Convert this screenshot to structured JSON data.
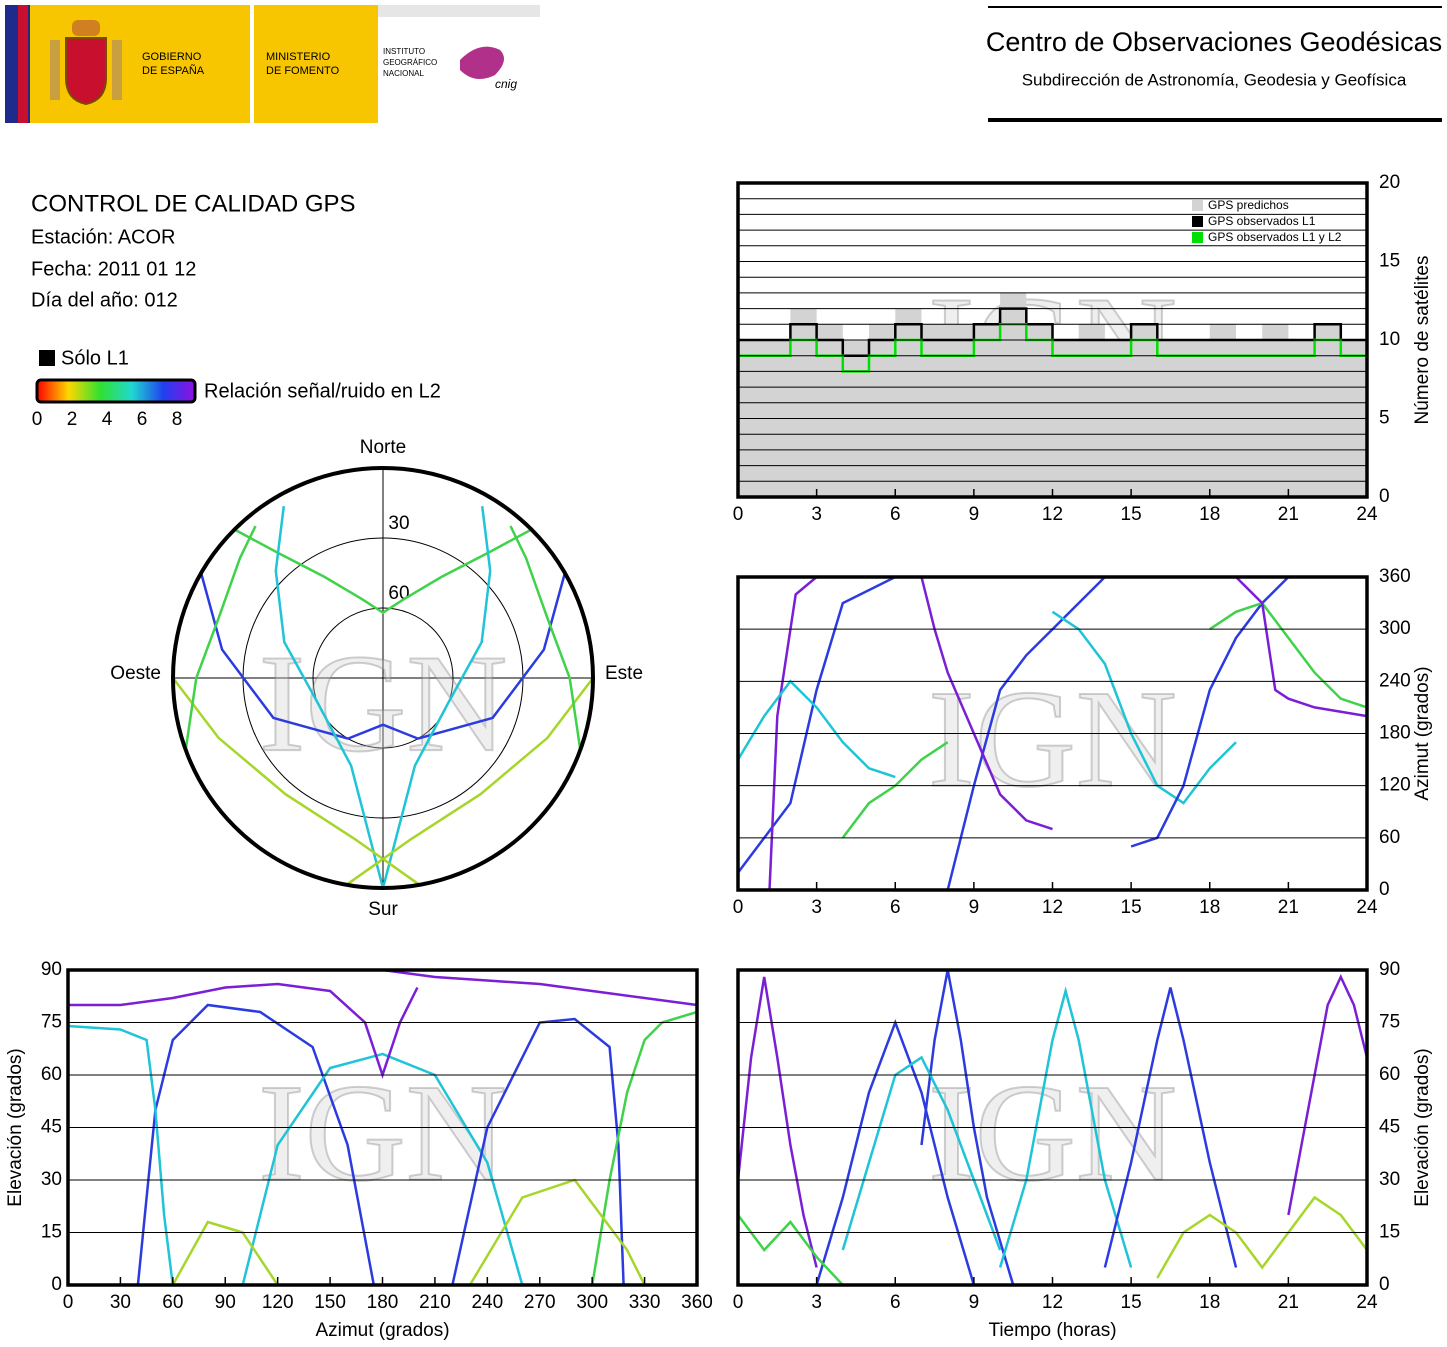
{
  "header": {
    "gov_line1": "GOBIERNO",
    "gov_line2": "DE ESPAÑA",
    "min_line1": "MINISTERIO",
    "min_line2": "DE FOMENTO",
    "ign_line1": "INSTITUTO",
    "ign_line2": "GEOGRÁFICO",
    "ign_line3": "NACIONAL",
    "cnig": "cnig",
    "center_title": "Centro de Observaciones Geodésicas",
    "center_subtitle": "Subdirección de Astronomía, Geodesia y Geofísica"
  },
  "report": {
    "title": "CONTROL DE CALIDAD GPS",
    "station": "Estación: ACOR",
    "date": "Fecha: 2011 01 12",
    "doy": "Día del año: 012",
    "l1_only_label": "Sólo L1",
    "l1_only_color": "#000000",
    "colorbar_label": "Relación señal/ruido en L2",
    "colorbar_ticks": [
      0,
      2,
      4,
      6,
      8
    ],
    "colorbar_colors": [
      "#ff0000",
      "#ffd800",
      "#30e030",
      "#20d8d0",
      "#2040f0",
      "#9010e0"
    ]
  },
  "watermark": "IGN",
  "chart_data": [
    {
      "type": "step",
      "y_axis_side": "right",
      "ylabel": "Número de satélites",
      "xlim": [
        0,
        24
      ],
      "xticks": [
        0,
        3,
        6,
        9,
        12,
        15,
        18,
        21,
        24
      ],
      "ylim": [
        0,
        20
      ],
      "yticks": [
        0,
        5,
        10,
        15,
        20
      ],
      "yminorticks": [
        1,
        2,
        3,
        4,
        6,
        7,
        8,
        9,
        11,
        12,
        13,
        14,
        16,
        17,
        18,
        19
      ],
      "grid": true,
      "x": [
        0,
        1,
        2,
        3,
        4,
        5,
        6,
        7,
        8,
        9,
        10,
        11,
        12,
        13,
        14,
        15,
        16,
        17,
        18,
        19,
        20,
        21,
        22,
        23,
        24
      ],
      "series": [
        {
          "name": "GPS predichos",
          "color": "#d3d3d3",
          "values": [
            10,
            10,
            12,
            11,
            10,
            11,
            12,
            11,
            11,
            11,
            13,
            11,
            10,
            11,
            10,
            11,
            10,
            10,
            11,
            10,
            11,
            10,
            11,
            10,
            10
          ]
        },
        {
          "name": "GPS observados L1",
          "color": "#000000",
          "values": [
            10,
            10,
            11,
            10,
            9,
            10,
            11,
            10,
            10,
            11,
            12,
            11,
            10,
            10,
            10,
            11,
            10,
            10,
            10,
            10,
            10,
            10,
            11,
            10,
            10
          ]
        },
        {
          "name": "GPS observados L1 y L2",
          "color": "#00e000",
          "values": [
            9,
            9,
            10,
            9,
            8,
            9,
            10,
            9,
            9,
            10,
            11,
            10,
            9,
            9,
            9,
            10,
            9,
            9,
            9,
            9,
            9,
            9,
            10,
            9,
            9
          ]
        }
      ]
    },
    {
      "type": "line",
      "y_axis_side": "right",
      "ylabel": "Azimut (grados)",
      "xlim": [
        0,
        24
      ],
      "xticks": [
        0,
        3,
        6,
        9,
        12,
        15,
        18,
        21,
        24
      ],
      "ylim": [
        0,
        360
      ],
      "yticks": [
        0,
        60,
        120,
        180,
        240,
        300,
        360
      ],
      "grid": true,
      "series": [
        {
          "color": "#2b3be0",
          "x": [
            0,
            2,
            3,
            3.5,
            4,
            6
          ],
          "values": [
            20,
            100,
            230,
            280,
            330,
            360
          ]
        },
        {
          "color": "#7b1fd6",
          "x": [
            1.2,
            1.5,
            2.2,
            3
          ],
          "values": [
            0,
            200,
            340,
            360
          ]
        },
        {
          "color": "#1fc4d6",
          "x": [
            0,
            1,
            2,
            3,
            4,
            5,
            6
          ],
          "values": [
            150,
            200,
            240,
            210,
            170,
            140,
            130
          ]
        },
        {
          "color": "#3fd24a",
          "x": [
            4,
            5,
            6,
            7,
            8
          ],
          "values": [
            60,
            100,
            120,
            150,
            170
          ]
        },
        {
          "color": "#2b3be0",
          "x": [
            8,
            9,
            10,
            11,
            12,
            13,
            14
          ],
          "values": [
            0,
            120,
            230,
            270,
            300,
            330,
            360
          ]
        },
        {
          "color": "#7b1fd6",
          "x": [
            7,
            7.5,
            8,
            9,
            10,
            11,
            12
          ],
          "values": [
            360,
            300,
            250,
            180,
            110,
            80,
            70
          ]
        },
        {
          "color": "#1fc4d6",
          "x": [
            12,
            13,
            14,
            15,
            16,
            17,
            18,
            19
          ],
          "values": [
            320,
            300,
            260,
            180,
            120,
            100,
            140,
            170
          ]
        },
        {
          "color": "#2b3be0",
          "x": [
            15,
            16,
            17,
            18,
            19,
            20,
            21
          ],
          "values": [
            50,
            60,
            120,
            230,
            290,
            330,
            360
          ]
        },
        {
          "color": "#3fd24a",
          "x": [
            18,
            19,
            20,
            21,
            22,
            23,
            24
          ],
          "values": [
            300,
            320,
            330,
            290,
            250,
            220,
            210
          ]
        },
        {
          "color": "#7b1fd6",
          "x": [
            19,
            20,
            20.5,
            21,
            22,
            24
          ],
          "values": [
            360,
            330,
            230,
            220,
            210,
            200
          ]
        }
      ]
    },
    {
      "type": "polar",
      "north": "Norte",
      "south": "Sur",
      "east": "Este",
      "west": "Oeste",
      "rticks": [
        30,
        60
      ],
      "series": [
        {
          "color": "#3fd24a",
          "x": [
            315,
            320,
            330,
            345,
            0,
            15,
            30,
            40,
            45
          ],
          "values": [
            0,
            20,
            40,
            55,
            62,
            55,
            40,
            20,
            0
          ]
        },
        {
          "color": "#2b3be0",
          "x": [
            300,
            280,
            250,
            210,
            180,
            150,
            110,
            80,
            60
          ],
          "values": [
            0,
            20,
            40,
            60,
            70,
            60,
            40,
            20,
            0
          ]
        },
        {
          "color": "#1fc4d6",
          "x": [
            330,
            315,
            290,
            250,
            200,
            180
          ],
          "values": [
            5,
            25,
            45,
            60,
            50,
            0
          ]
        },
        {
          "color": "#1fc4d6",
          "x": [
            30,
            45,
            70,
            110,
            160,
            180
          ],
          "values": [
            5,
            25,
            45,
            60,
            50,
            0
          ]
        },
        {
          "color": "#a6d62a",
          "x": [
            270,
            250,
            220,
            190,
            170
          ],
          "values": [
            0,
            15,
            25,
            20,
            0
          ]
        },
        {
          "color": "#a6d62a",
          "x": [
            90,
            110,
            140,
            170,
            190
          ],
          "values": [
            0,
            15,
            25,
            20,
            0
          ]
        },
        {
          "color": "#3fd24a",
          "x": [
            320,
            310,
            290,
            270,
            250
          ],
          "values": [
            5,
            10,
            15,
            10,
            0
          ]
        },
        {
          "color": "#3fd24a",
          "x": [
            40,
            50,
            70,
            90,
            110
          ],
          "values": [
            5,
            10,
            15,
            10,
            0
          ]
        }
      ]
    },
    {
      "type": "line",
      "y_axis_side": "left",
      "xlabel": "Azimut (grados)",
      "ylabel": "Elevación (grados)",
      "xlim": [
        0,
        360
      ],
      "xticks": [
        0,
        30,
        60,
        90,
        120,
        150,
        180,
        210,
        240,
        270,
        300,
        330,
        360
      ],
      "ylim": [
        0,
        90
      ],
      "yticks": [
        0,
        15,
        30,
        45,
        60,
        75,
        90
      ],
      "grid": true,
      "series": [
        {
          "color": "#2b3be0",
          "x": [
            40,
            45,
            50,
            60,
            80,
            110,
            140,
            160,
            175
          ],
          "values": [
            0,
            25,
            50,
            70,
            80,
            78,
            68,
            40,
            0
          ]
        },
        {
          "color": "#1fc4d6",
          "x": [
            100,
            120,
            150,
            180,
            210,
            240,
            260
          ],
          "values": [
            0,
            40,
            62,
            66,
            60,
            35,
            0
          ]
        },
        {
          "color": "#7b1fd6",
          "x": [
            0,
            30,
            60,
            90,
            120,
            150,
            170,
            180,
            190,
            200
          ],
          "values": [
            80,
            80,
            82,
            85,
            86,
            84,
            75,
            60,
            75,
            85
          ]
        },
        {
          "color": "#7b1fd6",
          "x": [
            180,
            210,
            240,
            270,
            300,
            330,
            360
          ],
          "values": [
            90,
            88,
            87,
            86,
            84,
            82,
            80
          ]
        },
        {
          "color": "#2b3be0",
          "x": [
            220,
            240,
            270,
            290,
            310,
            315,
            318
          ],
          "values": [
            0,
            45,
            75,
            76,
            68,
            40,
            0
          ]
        },
        {
          "color": "#1fc4d6",
          "x": [
            0,
            30,
            45,
            50,
            55,
            60
          ],
          "values": [
            74,
            73,
            70,
            50,
            20,
            0
          ]
        },
        {
          "color": "#3fd24a",
          "x": [
            300,
            310,
            320,
            330,
            340,
            360
          ],
          "values": [
            0,
            30,
            55,
            70,
            75,
            78
          ]
        },
        {
          "color": "#a6d62a",
          "x": [
            60,
            80,
            100,
            120
          ],
          "values": [
            0,
            18,
            15,
            0
          ]
        },
        {
          "color": "#a6d62a",
          "x": [
            230,
            260,
            290,
            320,
            330
          ],
          "values": [
            0,
            25,
            30,
            10,
            0
          ]
        }
      ]
    },
    {
      "type": "line",
      "y_axis_side": "right",
      "xlabel": "Tiempo (horas)",
      "ylabel": "Elevación (grados)",
      "xlim": [
        0,
        24
      ],
      "xticks": [
        0,
        3,
        6,
        9,
        12,
        15,
        18,
        21,
        24
      ],
      "ylim": [
        0,
        90
      ],
      "yticks": [
        0,
        15,
        30,
        45,
        60,
        75,
        90
      ],
      "grid": true,
      "series": [
        {
          "color": "#7b1fd6",
          "x": [
            0,
            0.5,
            1,
            1.5,
            2,
            2.5,
            3
          ],
          "values": [
            30,
            65,
            88,
            65,
            40,
            20,
            5
          ]
        },
        {
          "color": "#2b3be0",
          "x": [
            3,
            4,
            5,
            6,
            7,
            8,
            9
          ],
          "values": [
            0,
            25,
            55,
            75,
            55,
            25,
            0
          ]
        },
        {
          "color": "#2b3be0",
          "x": [
            7,
            7.5,
            8,
            8.5,
            9,
            9.5,
            10.5
          ],
          "values": [
            40,
            70,
            90,
            70,
            45,
            25,
            0
          ]
        },
        {
          "color": "#1fc4d6",
          "x": [
            10,
            11,
            12,
            12.5,
            13,
            14,
            15
          ],
          "values": [
            5,
            30,
            70,
            84,
            70,
            30,
            5
          ]
        },
        {
          "color": "#2b3be0",
          "x": [
            14,
            15,
            16,
            16.5,
            17,
            18,
            19
          ],
          "values": [
            5,
            35,
            70,
            85,
            70,
            35,
            5
          ]
        },
        {
          "color": "#7b1fd6",
          "x": [
            21,
            22,
            22.5,
            23,
            23.5,
            24
          ],
          "values": [
            20,
            60,
            80,
            88,
            80,
            65
          ]
        },
        {
          "color": "#3fd24a",
          "x": [
            0,
            1,
            2,
            3,
            4
          ],
          "values": [
            20,
            10,
            18,
            8,
            0
          ]
        },
        {
          "color": "#1fc4d6",
          "x": [
            4,
            5,
            6,
            7,
            8,
            9,
            10
          ],
          "values": [
            10,
            35,
            60,
            65,
            50,
            30,
            10
          ]
        },
        {
          "color": "#a6d62a",
          "x": [
            16,
            17,
            18,
            19,
            20,
            21,
            22,
            23,
            24
          ],
          "values": [
            2,
            15,
            20,
            15,
            5,
            15,
            25,
            20,
            10
          ]
        }
      ]
    }
  ]
}
